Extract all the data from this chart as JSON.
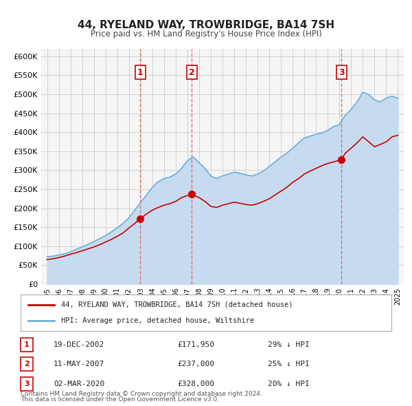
{
  "title": "44, RYELAND WAY, TROWBRIDGE, BA14 7SH",
  "subtitle": "Price paid vs. HM Land Registry's House Price Index (HPI)",
  "legend_label_red": "44, RYELAND WAY, TROWBRIDGE, BA14 7SH (detached house)",
  "legend_label_blue": "HPI: Average price, detached house, Wiltshire",
  "footnote1": "Contains HM Land Registry data © Crown copyright and database right 2024.",
  "footnote2": "This data is licensed under the Open Government Licence v3.0.",
  "transactions": [
    {
      "label": "1",
      "date": "19-DEC-2002",
      "date_x": 2002.96,
      "price": 171950,
      "pct": "29%",
      "dir": "↓"
    },
    {
      "label": "2",
      "date": "11-MAY-2007",
      "date_x": 2007.36,
      "price": 237000,
      "pct": "25%",
      "dir": "↓"
    },
    {
      "label": "3",
      "date": "02-MAR-2020",
      "date_x": 2020.17,
      "price": 328000,
      "pct": "20%",
      "dir": "↓"
    }
  ],
  "hpi_color": "#6baed6",
  "hpi_fill_color": "#c6dbef",
  "price_color": "#cc0000",
  "vline_color": "#e06060",
  "grid_color": "#cccccc",
  "background_color": "#ffffff",
  "plot_bg_color": "#f5f5f5",
  "ylim": [
    0,
    620000
  ],
  "yticks": [
    0,
    50000,
    100000,
    150000,
    200000,
    250000,
    300000,
    350000,
    400000,
    450000,
    500000,
    550000,
    600000
  ],
  "xlim_start": 1994.5,
  "xlim_end": 2025.5,
  "xticks": [
    1995,
    1996,
    1997,
    1998,
    1999,
    2000,
    2001,
    2002,
    2003,
    2004,
    2005,
    2006,
    2007,
    2008,
    2009,
    2010,
    2011,
    2012,
    2013,
    2014,
    2015,
    2016,
    2017,
    2018,
    2019,
    2020,
    2021,
    2022,
    2023,
    2024,
    2025
  ]
}
